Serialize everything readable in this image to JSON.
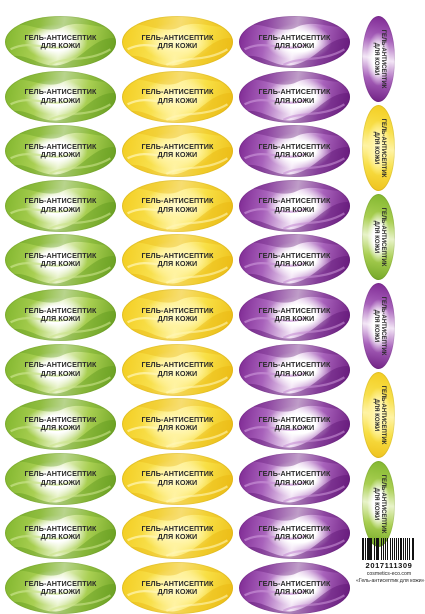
{
  "label_text": {
    "line1": "ГЕЛЬ-АНТИСЕПТИК",
    "line2": "ДЛЯ КОЖИ"
  },
  "columns": [
    "green",
    "yellow",
    "purple"
  ],
  "rows": 11,
  "vertical_labels": [
    "purple",
    "yellow",
    "green",
    "purple",
    "yellow",
    "green"
  ],
  "colors": {
    "green": "#8fc03a",
    "yellow": "#f5d52c",
    "purple": "#8e3aa4",
    "text": "#2a2a2a"
  },
  "barcode": {
    "number": "2017111309",
    "site": "cosmetics-eco.com",
    "product_name": "«Гель-антисептик для кожи»"
  }
}
